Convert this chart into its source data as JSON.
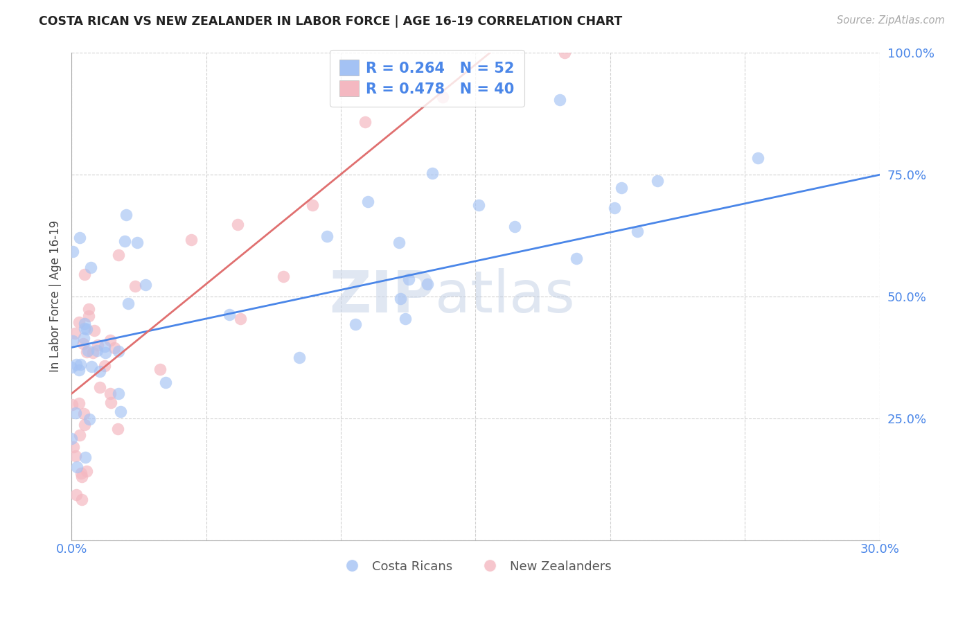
{
  "title": "COSTA RICAN VS NEW ZEALANDER IN LABOR FORCE | AGE 16-19 CORRELATION CHART",
  "source": "Source: ZipAtlas.com",
  "ylabel": "In Labor Force | Age 16-19",
  "xlim": [
    0.0,
    0.3
  ],
  "ylim": [
    0.0,
    1.0
  ],
  "ytick_vals": [
    0.0,
    0.25,
    0.5,
    0.75,
    1.0
  ],
  "ytick_labels": [
    "",
    "25.0%",
    "50.0%",
    "75.0%",
    "100.0%"
  ],
  "xtick_vals": [
    0.0,
    0.05,
    0.1,
    0.15,
    0.2,
    0.25,
    0.3
  ],
  "xtick_labels": [
    "0.0%",
    "",
    "",
    "",
    "",
    "",
    "30.0%"
  ],
  "blue_color": "#a4c2f4",
  "pink_color": "#f4b8c1",
  "blue_line_color": "#4a86e8",
  "pink_line_color": "#e07070",
  "legend_R1": "R = 0.264",
  "legend_N1": "N = 52",
  "legend_R2": "R = 0.478",
  "legend_N2": "N = 40",
  "watermark_zip": "ZIP",
  "watermark_atlas": "atlas",
  "tick_color": "#4a86e8",
  "bottom_legend_color": "#555555",
  "blue_intercept": 0.395,
  "blue_slope": 1.18,
  "pink_intercept": 0.3,
  "pink_slope": 4.5
}
